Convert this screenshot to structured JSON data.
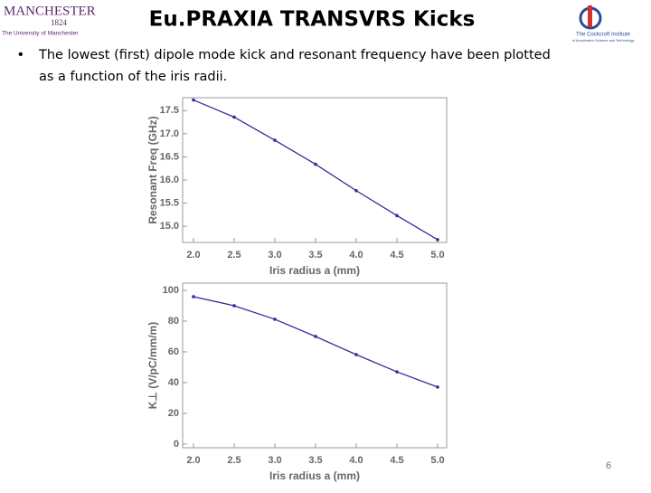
{
  "header": {
    "title": "Eu.PRAXIA TRANSVRS Kicks",
    "logo_left": {
      "name": "MANCHESTER",
      "year": "1824",
      "subtitle": "The University of Manchester"
    },
    "logo_right": {
      "name": "The Cockcroft Institute",
      "subtitle": "of Accelerator Science and Technology"
    }
  },
  "bullet": {
    "lines": [
      "The lowest (first) dipole mode kick and resonant frequency have been plotted",
      "as a function of the iris radii."
    ]
  },
  "page_number": "6",
  "chart_data": [
    {
      "type": "line",
      "xlabel": "Iris radius a (mm)",
      "ylabel": "Resonant Freq (GHz)",
      "color": "#2e2e9e",
      "x": [
        2.0,
        2.5,
        3.0,
        3.5,
        4.0,
        4.5,
        5.0
      ],
      "values": [
        17.73,
        17.36,
        16.86,
        16.34,
        15.77,
        15.23,
        14.71
      ],
      "xlim": [
        2.0,
        5.0
      ],
      "ylim": [
        14.65,
        17.78
      ],
      "xticks": [
        {
          "value": 2,
          "label": "2.0"
        },
        2.5,
        {
          "value": 3,
          "label": "3.0"
        },
        3.5,
        {
          "value": 4,
          "label": "4.0"
        },
        4.5,
        {
          "value": 5,
          "label": "5.0"
        }
      ],
      "yticks": [
        {
          "value": 15,
          "label": "15.0"
        },
        15.5,
        {
          "value": 16,
          "label": "16.0"
        },
        16.5,
        {
          "value": 17,
          "label": "17.0"
        },
        17.5
      ]
    },
    {
      "type": "line",
      "xlabel": "Iris radius a (mm)",
      "ylabel": "K⊥ (V/pC/mm/m)",
      "color": "#2e2e9e",
      "x": [
        2.0,
        2.5,
        3.0,
        3.5,
        4.0,
        4.5,
        5.0
      ],
      "values": [
        95.9,
        90,
        81.2,
        70,
        58.2,
        47,
        37.1
      ],
      "xlim": [
        2.0,
        5.0
      ],
      "ylim": [
        -2.4,
        104.7
      ],
      "xticks": [
        {
          "value": 2,
          "label": "2.0"
        },
        2.5,
        {
          "value": 3,
          "label": "3.0"
        },
        3.5,
        {
          "value": 4,
          "label": "4.0"
        },
        4.5,
        {
          "value": 5,
          "label": "5.0"
        }
      ],
      "yticks": [
        0,
        20,
        40,
        60,
        80,
        100
      ]
    }
  ]
}
